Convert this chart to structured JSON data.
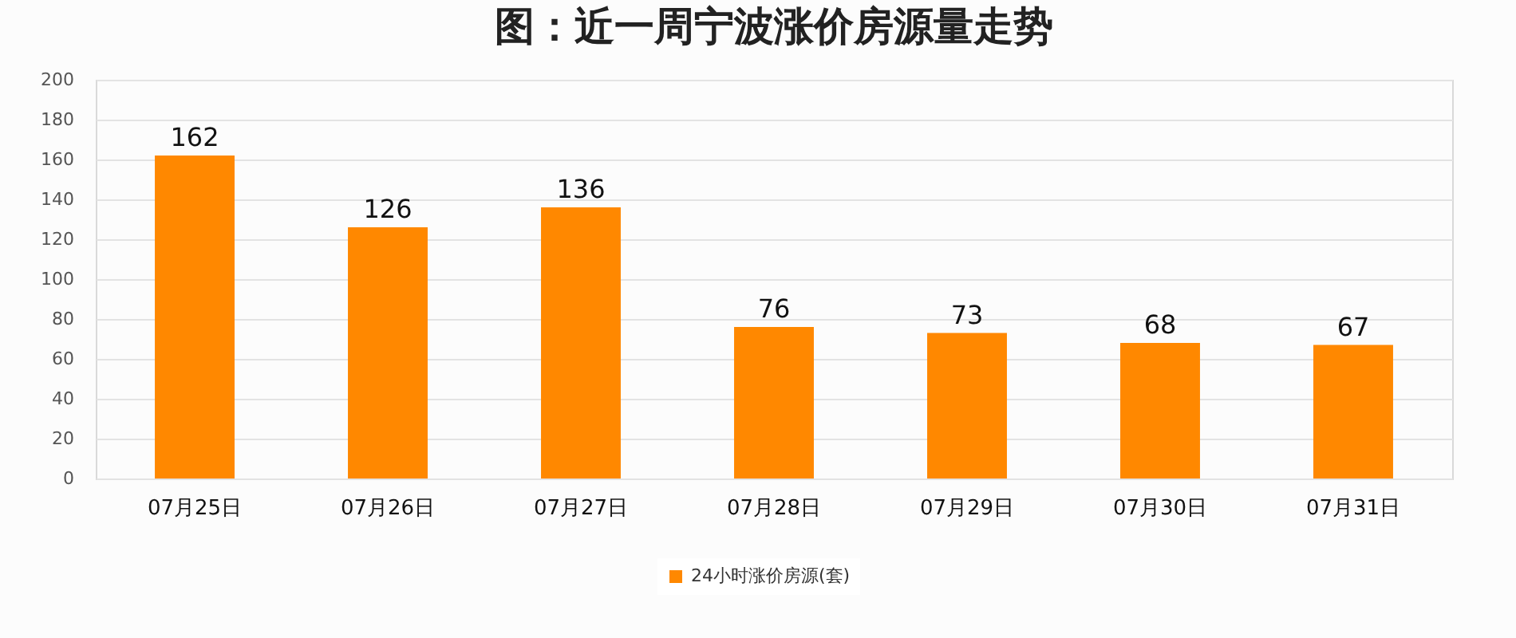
{
  "chart_data": {
    "type": "bar",
    "title": "图：近一周宁波涨价房源量走势",
    "categories": [
      "07月25日",
      "07月26日",
      "07月27日",
      "07月28日",
      "07月29日",
      "07月30日",
      "07月31日"
    ],
    "series": [
      {
        "name": "24小时涨价房源(套)",
        "color": "#ff8800",
        "values": [
          162,
          126,
          136,
          76,
          73,
          68,
          67
        ]
      }
    ],
    "ylim": [
      0,
      200
    ],
    "yticks": [
      0,
      20,
      40,
      60,
      80,
      100,
      120,
      140,
      160,
      180,
      200
    ],
    "grid": "y",
    "legend": "bottom",
    "data_labels": true
  }
}
